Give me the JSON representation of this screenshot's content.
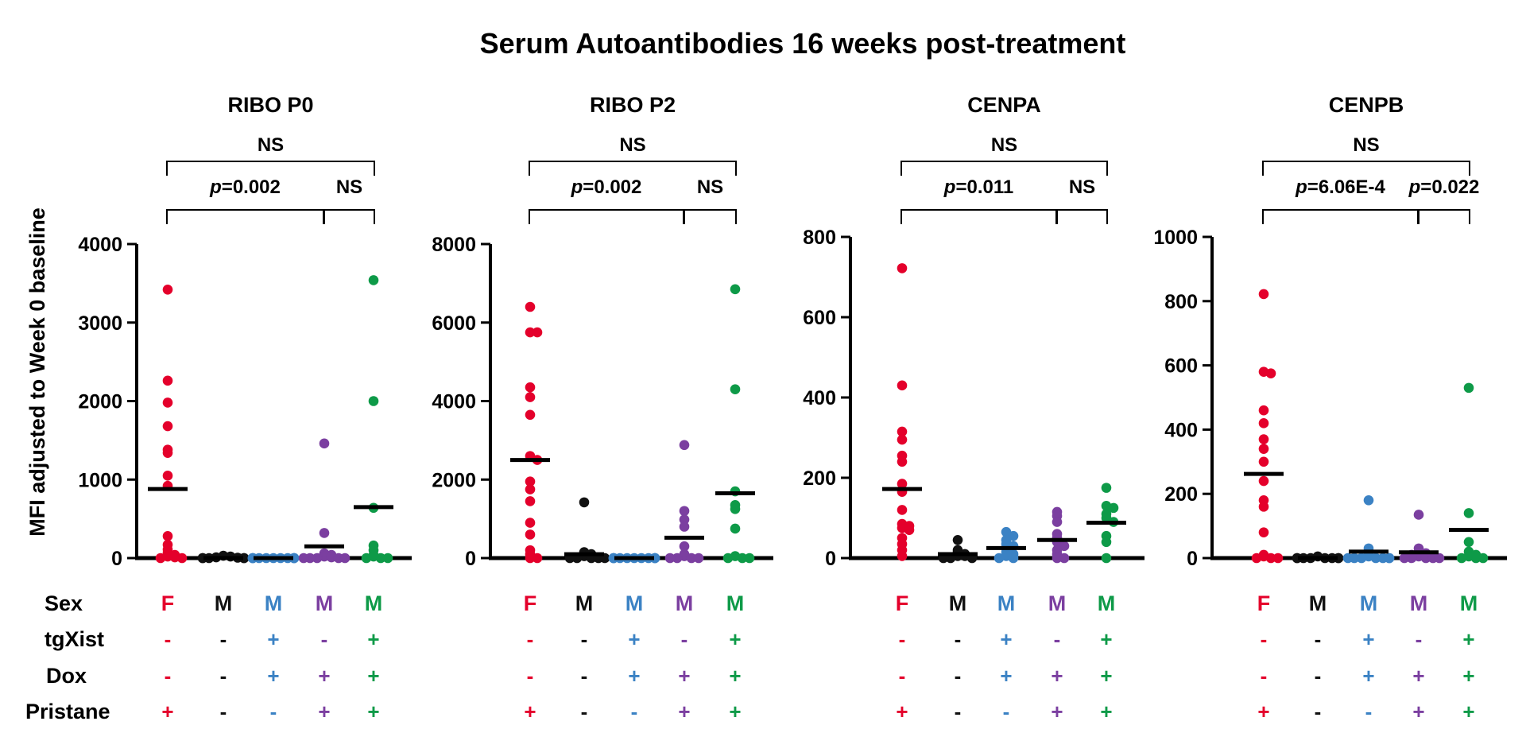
{
  "title": "Serum Autoantibodies 16 weeks post-treatment",
  "ylabel": "MFI adjusted to Week 0 baseline",
  "group_colors": [
    "#e4002b",
    "#111111",
    "#3b82c4",
    "#7b3fa0",
    "#0e9a48"
  ],
  "row_labels": [
    "Sex",
    "tgXist",
    "Dox",
    "Pristane"
  ],
  "conditions": [
    {
      "sex": "F",
      "tgXist": "-",
      "dox": "-",
      "pristane": "+"
    },
    {
      "sex": "M",
      "tgXist": "-",
      "dox": "-",
      "pristane": "-"
    },
    {
      "sex": "M",
      "tgXist": "+",
      "dox": "+",
      "pristane": "-"
    },
    {
      "sex": "M",
      "tgXist": "-",
      "dox": "+",
      "pristane": "+"
    },
    {
      "sex": "M",
      "tgXist": "+",
      "dox": "+",
      "pristane": "+"
    }
  ],
  "chart_data": [
    {
      "type": "scatter",
      "title": "RIBO P0",
      "ylim": [
        0,
        4000
      ],
      "yticks": [
        "0",
        "1000",
        "2000",
        "3000",
        "4000"
      ],
      "comparisons": [
        {
          "from": 0,
          "to": 4,
          "label": "NS",
          "italic_p": false
        },
        {
          "from": 0,
          "to": 3,
          "label": "=0.002",
          "italic_p": true
        },
        {
          "from": 3,
          "to": 4,
          "label": "NS",
          "italic_p": false
        }
      ],
      "groups": [
        {
          "mean": 880,
          "values": [
            3420,
            2260,
            1980,
            1680,
            1380,
            1340,
            1050,
            920,
            280,
            170,
            110,
            70,
            40,
            20,
            10,
            0,
            0
          ]
        },
        {
          "mean": 0,
          "values": [
            30,
            20,
            10,
            5,
            0,
            0,
            0,
            0,
            0
          ]
        },
        {
          "mean": 0,
          "values": [
            0,
            0,
            0,
            0,
            0,
            0,
            0,
            0,
            0,
            0,
            0
          ]
        },
        {
          "mean": 150,
          "values": [
            1460,
            320,
            60,
            40,
            20,
            10,
            0,
            0,
            0,
            0,
            0
          ]
        },
        {
          "mean": 650,
          "values": [
            3540,
            2000,
            640,
            160,
            100,
            40,
            20,
            0,
            0,
            0
          ]
        }
      ]
    },
    {
      "type": "scatter",
      "title": "RIBO P2",
      "ylim": [
        0,
        8000
      ],
      "yticks": [
        "0",
        "2000",
        "4000",
        "6000",
        "8000"
      ],
      "comparisons": [
        {
          "from": 0,
          "to": 4,
          "label": "NS",
          "italic_p": false
        },
        {
          "from": 0,
          "to": 3,
          "label": "=0.002",
          "italic_p": true
        },
        {
          "from": 3,
          "to": 4,
          "label": "NS",
          "italic_p": false
        }
      ],
      "groups": [
        {
          "mean": 2500,
          "values": [
            6400,
            5750,
            5750,
            4350,
            4100,
            3650,
            2600,
            2500,
            1950,
            1750,
            1450,
            900,
            600,
            200,
            100,
            0,
            0
          ]
        },
        {
          "mean": 100,
          "values": [
            1420,
            150,
            100,
            50,
            0,
            0,
            0,
            0,
            0
          ]
        },
        {
          "mean": 0,
          "values": [
            0,
            0,
            0,
            0,
            0,
            0,
            0,
            0,
            0,
            0,
            0
          ]
        },
        {
          "mean": 520,
          "values": [
            2880,
            1200,
            980,
            800,
            300,
            100,
            50,
            0,
            0,
            0,
            0
          ]
        },
        {
          "mean": 1650,
          "values": [
            6850,
            4300,
            1700,
            1350,
            1250,
            750,
            50,
            0,
            0,
            0
          ]
        }
      ]
    },
    {
      "type": "scatter",
      "title": "CENPA",
      "ylim": [
        0,
        800
      ],
      "yticks": [
        "0",
        "200",
        "400",
        "600",
        "800"
      ],
      "comparisons": [
        {
          "from": 0,
          "to": 4,
          "label": "NS",
          "italic_p": false
        },
        {
          "from": 0,
          "to": 3,
          "label": "=0.011",
          "italic_p": true
        },
        {
          "from": 3,
          "to": 4,
          "label": "NS",
          "italic_p": false
        }
      ],
      "groups": [
        {
          "mean": 172,
          "values": [
            722,
            430,
            315,
            295,
            255,
            240,
            185,
            165,
            120,
            85,
            80,
            75,
            70,
            50,
            35,
            20,
            5
          ]
        },
        {
          "mean": 10,
          "values": [
            45,
            20,
            15,
            10,
            5,
            5,
            0,
            0,
            0
          ]
        },
        {
          "mean": 25,
          "values": [
            65,
            55,
            45,
            35,
            30,
            25,
            15,
            10,
            5,
            0,
            0
          ]
        },
        {
          "mean": 45,
          "values": [
            115,
            105,
            90,
            60,
            50,
            40,
            30,
            20,
            10,
            0,
            0
          ]
        },
        {
          "mean": 88,
          "values": [
            175,
            130,
            125,
            110,
            100,
            90,
            55,
            40,
            0
          ]
        }
      ]
    },
    {
      "type": "scatter",
      "title": "CENPB",
      "ylim": [
        0,
        1000
      ],
      "yticks": [
        "0",
        "200",
        "400",
        "600",
        "800",
        "1000"
      ],
      "comparisons": [
        {
          "from": 0,
          "to": 4,
          "label": "NS",
          "italic_p": false
        },
        {
          "from": 0,
          "to": 3,
          "label": "=6.06E-4",
          "italic_p": true
        },
        {
          "from": 3,
          "to": 4,
          "label": "=0.022",
          "italic_p": true
        }
      ],
      "groups": [
        {
          "mean": 262,
          "values": [
            822,
            580,
            575,
            460,
            420,
            370,
            340,
            300,
            240,
            180,
            160,
            80,
            10,
            5,
            0,
            0,
            0
          ]
        },
        {
          "mean": 0,
          "values": [
            5,
            0,
            0,
            0,
            0,
            0,
            0,
            0,
            0
          ]
        },
        {
          "mean": 20,
          "values": [
            180,
            30,
            10,
            5,
            0,
            0,
            0,
            0,
            0,
            0,
            0
          ]
        },
        {
          "mean": 18,
          "values": [
            135,
            30,
            20,
            15,
            10,
            5,
            0,
            0,
            0,
            0,
            0
          ]
        },
        {
          "mean": 88,
          "values": [
            530,
            140,
            50,
            20,
            10,
            5,
            0,
            0,
            0
          ]
        }
      ]
    }
  ]
}
